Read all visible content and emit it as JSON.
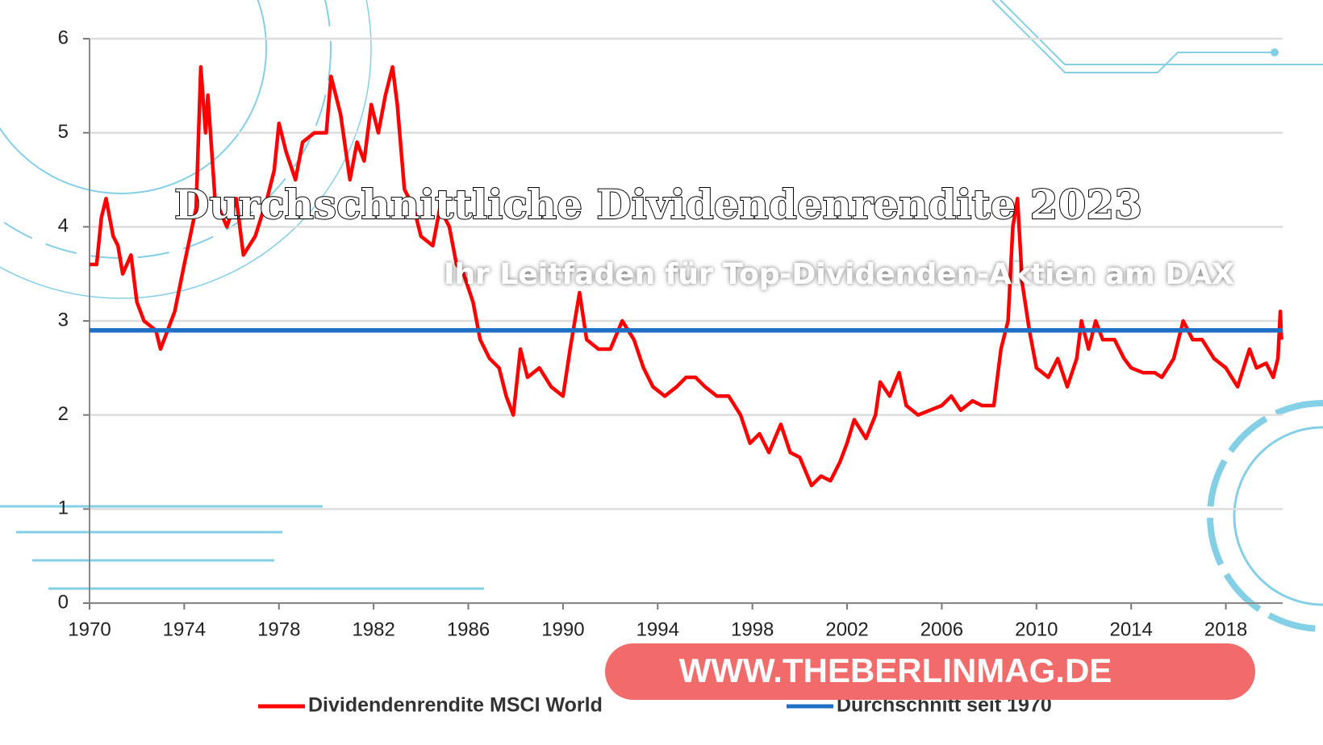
{
  "chart_data": {
    "type": "line",
    "title": "Durchschnittliche Dividendenrendite 2023",
    "subtitle": "Ihr Leitfaden für Top-Dividenden-Aktien am DAX",
    "annotation": "WWW.THEBERLINMAG.DE",
    "xlim": [
      1970,
      2020.4
    ],
    "xticks": [
      1970,
      1974,
      1978,
      1982,
      1986,
      1990,
      1994,
      1998,
      2002,
      2006,
      2010,
      2014,
      2018
    ],
    "ylim": [
      0,
      6
    ],
    "yticks": [
      0,
      1,
      2,
      3,
      4,
      5,
      6
    ],
    "grid": true,
    "series": [
      {
        "name": "Dividendenrendite MSCI World",
        "color": "#ff0000",
        "x": [
          1970.0,
          1970.3,
          1970.5,
          1970.7,
          1971.0,
          1971.2,
          1971.4,
          1971.75,
          1972.0,
          1972.3,
          1972.8,
          1973.0,
          1973.3,
          1973.6,
          1974.0,
          1974.5,
          1974.7,
          1974.9,
          1975.0,
          1975.3,
          1975.8,
          1976.2,
          1976.5,
          1977.0,
          1977.5,
          1977.8,
          1978.0,
          1978.3,
          1978.7,
          1979.0,
          1979.5,
          1980.0,
          1980.2,
          1980.6,
          1981.0,
          1981.3,
          1981.6,
          1981.9,
          1982.2,
          1982.5,
          1982.8,
          1983.0,
          1983.3,
          1983.7,
          1984.0,
          1984.5,
          1984.8,
          1985.2,
          1985.5,
          1985.8,
          1986.2,
          1986.5,
          1986.9,
          1987.3,
          1987.6,
          1987.9,
          1988.2,
          1988.5,
          1989.0,
          1989.5,
          1990.0,
          1990.3,
          1990.7,
          1991.0,
          1991.5,
          1992.0,
          1992.5,
          1993.0,
          1993.4,
          1993.8,
          1994.3,
          1994.8,
          1995.2,
          1995.6,
          1996.0,
          1996.5,
          1997.0,
          1997.5,
          1997.9,
          1998.3,
          1998.7,
          1999.2,
          1999.6,
          2000.0,
          2000.5,
          2000.9,
          2001.3,
          2001.7,
          2002.0,
          2002.3,
          2002.8,
          2003.2,
          2003.4,
          2003.8,
          2004.2,
          2004.5,
          2005.0,
          2005.5,
          2006.0,
          2006.4,
          2006.8,
          2007.3,
          2007.7,
          2008.2,
          2008.5,
          2008.8,
          2009.0,
          2009.2,
          2009.4,
          2009.7,
          2010.0,
          2010.5,
          2010.9,
          2011.3,
          2011.7,
          2011.9,
          2012.2,
          2012.5,
          2012.8,
          2013.3,
          2013.7,
          2014.0,
          2014.5,
          2015.0,
          2015.3,
          2015.8,
          2016.2,
          2016.6,
          2017.0,
          2017.5,
          2018.0,
          2018.5,
          2019.0,
          2019.3,
          2019.7,
          2020.0,
          2020.2,
          2020.3,
          2020.35
        ],
        "values": [
          3.6,
          3.6,
          4.1,
          4.3,
          3.9,
          3.8,
          3.5,
          3.7,
          3.2,
          3.0,
          2.9,
          2.7,
          2.9,
          3.1,
          3.6,
          4.2,
          5.7,
          5.0,
          5.4,
          4.3,
          4.0,
          4.3,
          3.7,
          3.9,
          4.3,
          4.6,
          5.1,
          4.8,
          4.5,
          4.9,
          5.0,
          5.0,
          5.6,
          5.2,
          4.5,
          4.9,
          4.7,
          5.3,
          5.0,
          5.4,
          5.7,
          5.3,
          4.4,
          4.2,
          3.9,
          3.8,
          4.2,
          4.0,
          3.6,
          3.5,
          3.2,
          2.8,
          2.6,
          2.5,
          2.2,
          2.0,
          2.7,
          2.4,
          2.5,
          2.3,
          2.2,
          2.7,
          3.3,
          2.8,
          2.7,
          2.7,
          3.0,
          2.8,
          2.5,
          2.3,
          2.2,
          2.3,
          2.4,
          2.4,
          2.3,
          2.2,
          2.2,
          2.0,
          1.7,
          1.8,
          1.6,
          1.9,
          1.6,
          1.55,
          1.25,
          1.35,
          1.3,
          1.5,
          1.7,
          1.95,
          1.75,
          2.0,
          2.35,
          2.2,
          2.45,
          2.1,
          2.0,
          2.05,
          2.1,
          2.2,
          2.05,
          2.15,
          2.1,
          2.1,
          2.7,
          3.0,
          4.0,
          4.3,
          3.4,
          2.9,
          2.5,
          2.4,
          2.6,
          2.3,
          2.6,
          3.0,
          2.7,
          3.0,
          2.8,
          2.8,
          2.6,
          2.5,
          2.45,
          2.45,
          2.4,
          2.6,
          3.0,
          2.8,
          2.8,
          2.6,
          2.5,
          2.3,
          2.7,
          2.5,
          2.55,
          2.4,
          2.6,
          3.1,
          2.8
        ]
      },
      {
        "name": "Durchschnitt seit 1970",
        "color": "#1f6fc6",
        "x": [
          1970,
          2020.4
        ],
        "values": [
          2.9,
          2.9
        ]
      }
    ]
  }
}
